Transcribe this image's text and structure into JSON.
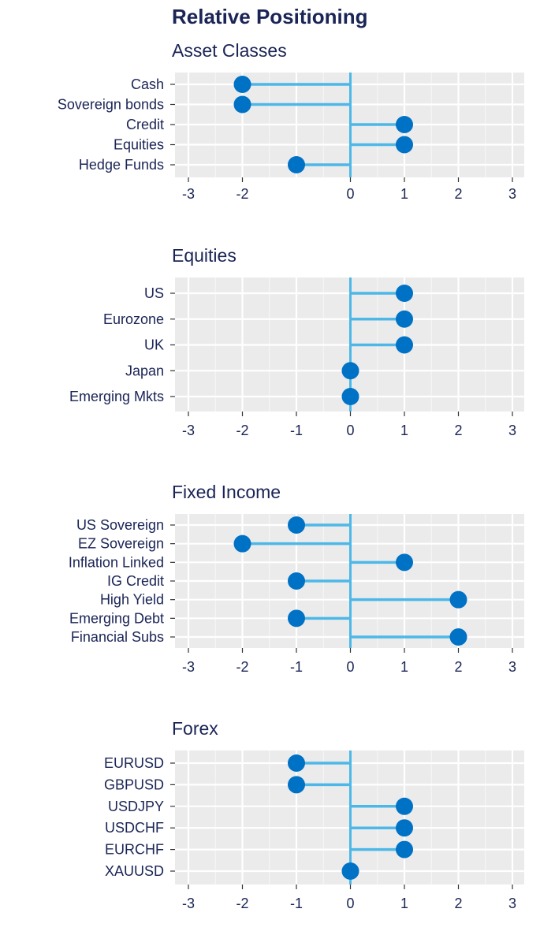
{
  "title": "Relative Positioning",
  "colors": {
    "background": "#ebebeb",
    "grid": "#ffffff",
    "stem": "#4db8e8",
    "point": "#0072c6",
    "text": "#1a2456"
  },
  "chart_data": [
    {
      "type": "lollipop",
      "title": "Asset Classes",
      "categories": [
        "Cash",
        "Sovereign bonds",
        "Credit",
        "Equities",
        "Hedge Funds"
      ],
      "values": [
        -2,
        -2,
        1,
        1,
        -1
      ],
      "xticks": [
        "-3",
        "-2",
        "0",
        "1",
        "2",
        "3"
      ],
      "xlim": [
        -3,
        3
      ],
      "grid": true
    },
    {
      "type": "lollipop",
      "title": "Equities",
      "categories": [
        "US",
        "Eurozone",
        "UK",
        "Japan",
        "Emerging Mkts"
      ],
      "values": [
        1,
        1,
        1,
        0,
        0
      ],
      "xticks": [
        "-3",
        "-2",
        "-1",
        "0",
        "1",
        "2",
        "3"
      ],
      "xlim": [
        -3,
        3
      ],
      "grid": true
    },
    {
      "type": "lollipop",
      "title": "Fixed Income",
      "categories": [
        "US Sovereign",
        "EZ Sovereign",
        "Inflation Linked",
        "IG Credit",
        "High Yield",
        "Emerging Debt",
        "Financial Subs"
      ],
      "values": [
        -1,
        -2,
        1,
        -1,
        2,
        -1,
        2
      ],
      "xticks": [
        "-3",
        "-2",
        "-1",
        "0",
        "1",
        "2",
        "3"
      ],
      "xlim": [
        -3,
        3
      ],
      "grid": true
    },
    {
      "type": "lollipop",
      "title": "Forex",
      "categories": [
        "EURUSD",
        "GBPUSD",
        "USDJPY",
        "USDCHF",
        "EURCHF",
        "XAUUSD"
      ],
      "values": [
        -1,
        -1,
        1,
        1,
        1,
        0
      ],
      "xticks": [
        "-3",
        "-2",
        "-1",
        "0",
        "1",
        "2",
        "3"
      ],
      "xlim": [
        -3,
        3
      ],
      "grid": true
    }
  ]
}
